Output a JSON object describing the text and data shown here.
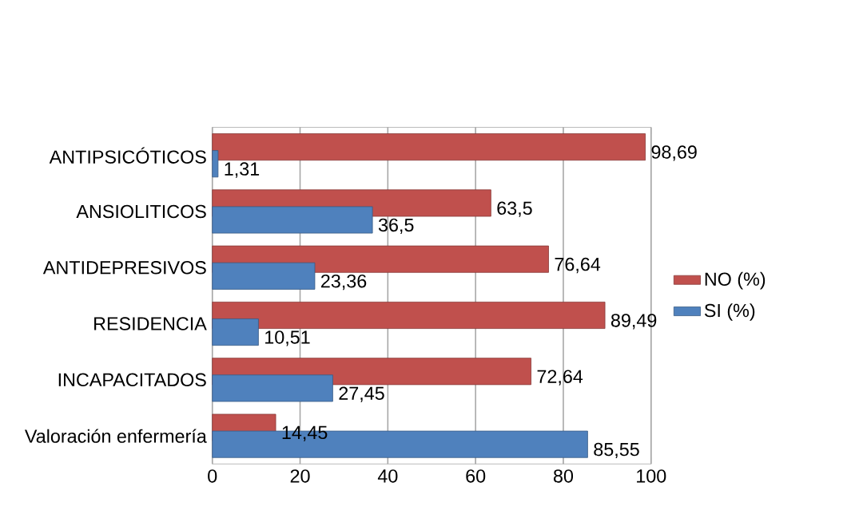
{
  "chart_data": {
    "type": "bar",
    "orientation": "horizontal",
    "categories": [
      "ANTIPSICÓTICOS",
      "ANSIOLITICOS",
      "ANTIDEPRESIVOS",
      "RESIDENCIA",
      "INCAPACITADOS",
      "Valoración enfermería"
    ],
    "series": [
      {
        "name": "NO (%)",
        "color": "#c0504d",
        "values": [
          98.69,
          63.5,
          76.64,
          89.49,
          72.64,
          14.45
        ],
        "value_labels": [
          "98,69",
          "63,5",
          "76,64",
          "89,49",
          "72,64",
          "14,45"
        ]
      },
      {
        "name": "SI (%)",
        "color": "#4f81bd",
        "values": [
          1.31,
          36.5,
          23.36,
          10.51,
          27.45,
          85.55
        ],
        "value_labels": [
          "1,31",
          "36,5",
          "23,36",
          "10,51",
          "27,45",
          "85,55"
        ]
      }
    ],
    "xlim": [
      0,
      100
    ],
    "xticks": [
      0,
      20,
      40,
      60,
      80,
      100
    ],
    "grid": "x",
    "legend": "right"
  }
}
